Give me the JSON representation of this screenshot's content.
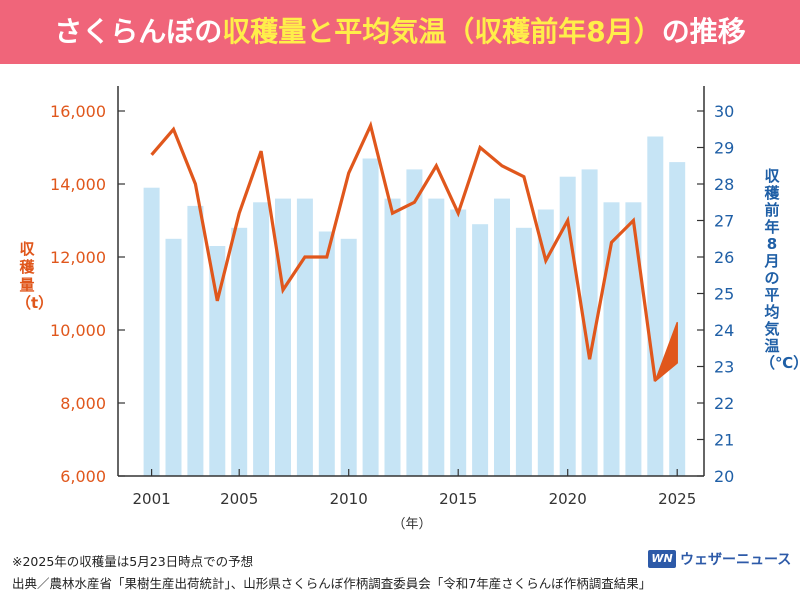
{
  "header": {
    "title_part1": "さくらんぼの",
    "title_highlight": "収穫量と平均気温（収穫前年8月）",
    "title_part2": "の推移"
  },
  "colors": {
    "banner": "#f0657a",
    "highlight": "#ffee4a",
    "line": "#e0571c",
    "bar": "#c6e4f5",
    "right_axis": "#1f5fa6"
  },
  "chart_data": {
    "type": "bar+line",
    "x": [
      2001,
      2002,
      2003,
      2004,
      2005,
      2006,
      2007,
      2008,
      2009,
      2010,
      2011,
      2012,
      2013,
      2014,
      2015,
      2016,
      2017,
      2018,
      2019,
      2020,
      2021,
      2022,
      2023,
      2024,
      2025
    ],
    "xticks": [
      2001,
      2005,
      2010,
      2015,
      2020,
      2025
    ],
    "xtick_labels": [
      "2001",
      "2005",
      "2010",
      "2015",
      "2020",
      "2025"
    ],
    "xlabel": "（年）",
    "ylabel_left": "収穫量（t）",
    "ylabel_right": "収穫前年8月の平均気温（℃）",
    "ylim_left": [
      6000,
      16000
    ],
    "yticks_left": [
      6000,
      8000,
      10000,
      12000,
      14000,
      16000
    ],
    "ytick_labels_left": [
      "6,000",
      "8,000",
      "10,000",
      "12,000",
      "14,000",
      "16,000"
    ],
    "ylim_right": [
      20,
      30
    ],
    "yticks_right": [
      20,
      21,
      22,
      23,
      24,
      25,
      26,
      27,
      28,
      29,
      30
    ],
    "ytick_labels_right": [
      "20",
      "21",
      "22",
      "23",
      "24",
      "25",
      "26",
      "27",
      "28",
      "29",
      "30"
    ],
    "series": [
      {
        "kind": "line",
        "axis": "left",
        "values": [
          14800,
          15500,
          14000,
          10800,
          13200,
          14900,
          11100,
          12000,
          12000,
          14300,
          15600,
          13200,
          13500,
          14500,
          13200,
          15000,
          14500,
          14200,
          11900,
          13000,
          9200,
          12400,
          13000,
          8600,
          null
        ]
      },
      {
        "kind": "bar",
        "axis": "right",
        "values": [
          27.9,
          26.5,
          27.4,
          26.3,
          26.8,
          27.5,
          27.6,
          27.6,
          26.7,
          26.5,
          28.7,
          27.6,
          28.4,
          27.6,
          27.3,
          26.9,
          27.6,
          26.8,
          27.3,
          28.2,
          28.4,
          27.5,
          27.5,
          29.3,
          28.6
        ]
      }
    ],
    "forecast_2025": [
      9100,
      10200
    ]
  },
  "footnote": "※2025年の収穫量は5月23日時点での予想",
  "source": "出典／農林水産省「果樹生産出荷統計」、山形県さくらんぼ作柄調査委員会「令和7年産さくらんぼ作柄調査結果」",
  "logo": {
    "mark": "WN",
    "text": "ウェザーニュース"
  }
}
